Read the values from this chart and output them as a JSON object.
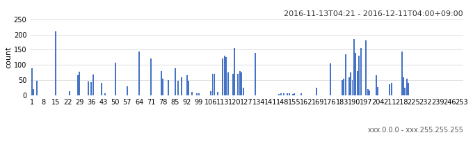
{
  "title": "2016-11-13T04:21 - 2016-12-11T04:00+09:00",
  "ylabel": "count",
  "xlabel_right": "xxx.0.0.0 - xxx.255.255.255",
  "ylim": [
    0,
    250
  ],
  "yticks": [
    0,
    50,
    100,
    150,
    200,
    250
  ],
  "bar_color": "#4472c4",
  "xtick_labels": [
    "1",
    "8",
    "15",
    "22",
    "29",
    "36",
    "43",
    "50",
    "57",
    "64",
    "71",
    "78",
    "85",
    "92",
    "99",
    "106",
    "113",
    "120",
    "127",
    "134",
    "141",
    "148",
    "155",
    "162",
    "169",
    "176",
    "183",
    "190",
    "197",
    "204",
    "211",
    "218",
    "225",
    "232",
    "239",
    "246",
    "253"
  ],
  "xtick_positions": [
    1,
    8,
    15,
    22,
    29,
    36,
    43,
    50,
    57,
    64,
    71,
    78,
    85,
    92,
    99,
    106,
    113,
    120,
    127,
    134,
    141,
    148,
    155,
    162,
    169,
    176,
    183,
    190,
    197,
    204,
    211,
    218,
    225,
    232,
    239,
    246,
    253
  ],
  "data": {
    "1": 88,
    "2": 20,
    "3": 0,
    "4": 47,
    "5": 0,
    "6": 0,
    "7": 0,
    "8": 0,
    "9": 0,
    "10": 0,
    "11": 0,
    "12": 0,
    "13": 0,
    "14": 0,
    "15": 210,
    "16": 0,
    "17": 0,
    "18": 0,
    "19": 0,
    "20": 0,
    "21": 0,
    "22": 0,
    "23": 14,
    "24": 0,
    "25": 0,
    "26": 0,
    "27": 0,
    "28": 65,
    "29": 77,
    "30": 0,
    "31": 0,
    "32": 0,
    "33": 0,
    "34": 45,
    "35": 0,
    "36": 43,
    "37": 68,
    "38": 0,
    "39": 0,
    "40": 0,
    "41": 0,
    "42": 40,
    "43": 0,
    "44": 7,
    "45": 0,
    "46": 0,
    "47": 0,
    "48": 0,
    "49": 0,
    "50": 108,
    "51": 0,
    "52": 0,
    "53": 0,
    "54": 0,
    "55": 0,
    "56": 0,
    "57": 30,
    "58": 0,
    "59": 0,
    "60": 0,
    "61": 0,
    "62": 0,
    "63": 0,
    "64": 145,
    "65": 0,
    "66": 0,
    "67": 0,
    "68": 0,
    "69": 0,
    "70": 0,
    "71": 120,
    "72": 0,
    "73": 0,
    "74": 0,
    "75": 0,
    "76": 0,
    "77": 80,
    "78": 55,
    "79": 0,
    "80": 0,
    "81": 50,
    "82": 0,
    "83": 0,
    "84": 0,
    "85": 90,
    "86": 0,
    "87": 47,
    "88": 0,
    "89": 60,
    "90": 0,
    "91": 0,
    "92": 65,
    "93": 47,
    "94": 0,
    "95": 10,
    "96": 0,
    "97": 0,
    "98": 5,
    "99": 5,
    "100": 0,
    "101": 0,
    "102": 0,
    "103": 0,
    "104": 0,
    "105": 0,
    "106": 12,
    "107": 70,
    "108": 70,
    "109": 0,
    "110": 10,
    "111": 0,
    "112": 0,
    "113": 120,
    "114": 130,
    "115": 125,
    "116": 75,
    "117": 0,
    "118": 0,
    "119": 70,
    "120": 155,
    "121": 0,
    "122": 70,
    "123": 80,
    "124": 75,
    "125": 25,
    "126": 0,
    "127": 0,
    "128": 0,
    "129": 0,
    "130": 0,
    "131": 0,
    "132": 140,
    "133": 0,
    "134": 0,
    "135": 0,
    "136": 0,
    "137": 0,
    "138": 0,
    "139": 0,
    "140": 0,
    "141": 0,
    "142": 0,
    "143": 0,
    "144": 0,
    "145": 0,
    "146": 4,
    "147": 5,
    "148": 0,
    "149": 5,
    "150": 0,
    "151": 5,
    "152": 5,
    "153": 0,
    "154": 3,
    "155": 5,
    "156": 0,
    "157": 0,
    "158": 0,
    "159": 5,
    "160": 0,
    "161": 0,
    "162": 0,
    "163": 0,
    "164": 0,
    "165": 0,
    "166": 0,
    "167": 0,
    "168": 24,
    "169": 0,
    "170": 0,
    "171": 0,
    "172": 0,
    "173": 0,
    "174": 0,
    "175": 0,
    "176": 105,
    "177": 0,
    "178": 0,
    "179": 0,
    "180": 0,
    "181": 0,
    "182": 0,
    "183": 50,
    "184": 55,
    "185": 135,
    "186": 0,
    "187": 60,
    "188": 75,
    "189": 50,
    "190": 185,
    "191": 140,
    "192": 80,
    "193": 130,
    "194": 155,
    "195": 0,
    "196": 0,
    "197": 180,
    "198": 20,
    "199": 15,
    "200": 0,
    "201": 0,
    "202": 0,
    "203": 65,
    "204": 27,
    "205": 0,
    "206": 0,
    "207": 0,
    "208": 0,
    "209": 0,
    "210": 0,
    "211": 35,
    "212": 40,
    "213": 0,
    "214": 0,
    "215": 0,
    "216": 0,
    "217": 0,
    "218": 145,
    "219": 60,
    "220": 25,
    "221": 55,
    "222": 40,
    "223": 0,
    "224": 0,
    "225": 0,
    "226": 0,
    "227": 0,
    "228": 0,
    "229": 0,
    "230": 0,
    "231": 0,
    "232": 0,
    "233": 0,
    "234": 0,
    "235": 0,
    "236": 0,
    "237": 0,
    "238": 0,
    "239": 0,
    "240": 0,
    "241": 0,
    "242": 0,
    "243": 0,
    "244": 0,
    "245": 0,
    "246": 0,
    "247": 0,
    "248": 0,
    "249": 0,
    "250": 0,
    "251": 0,
    "252": 0,
    "253": 0
  }
}
